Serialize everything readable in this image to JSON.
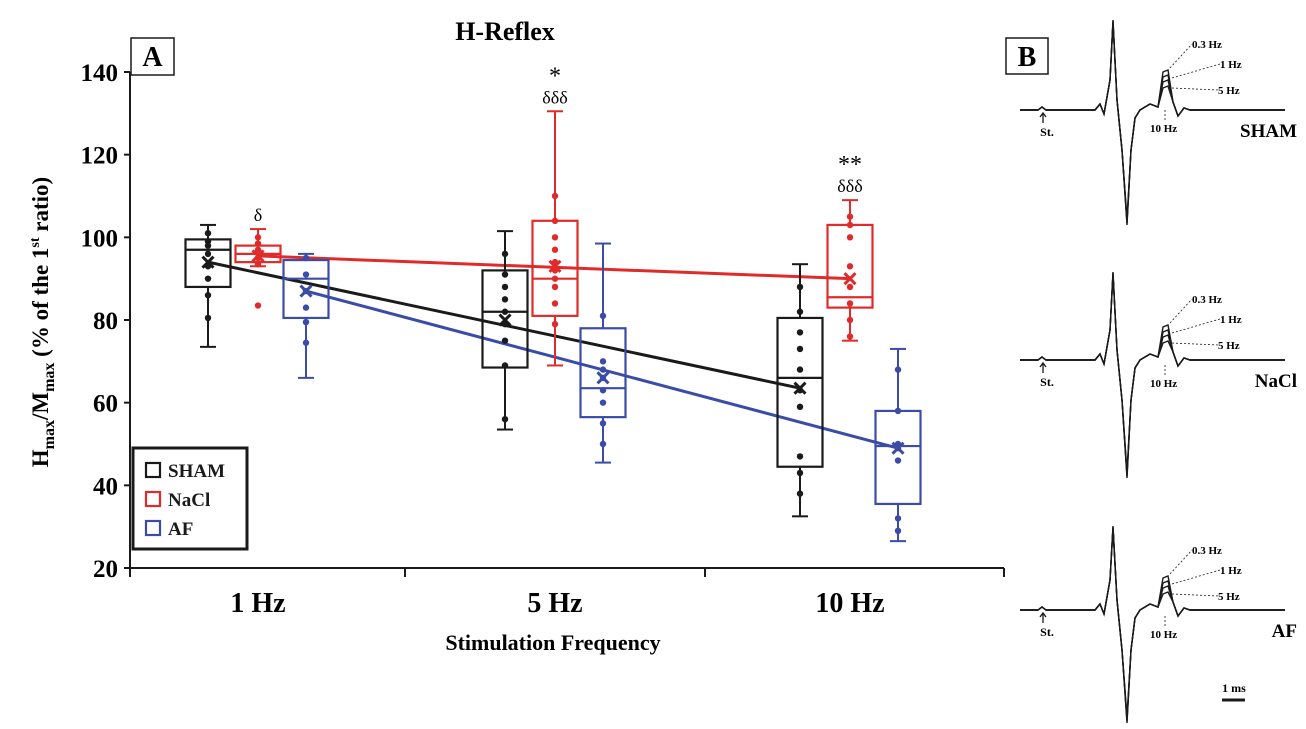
{
  "colors": {
    "sham": "#1a1a1a",
    "nacl": "#e02b2b",
    "af": "#3a4ca8"
  },
  "panel_a": {
    "label": "A",
    "title": "H-Reflex",
    "ylabel_main": "H",
    "ylabel_sub1": "max",
    "ylabel_mid": "/M",
    "ylabel_sub2": "max",
    "ylabel_rest": " (% of the 1",
    "ylabel_sup": "st",
    "ylabel_end": " ratio)",
    "xlabel": "Stimulation Frequency"
  },
  "panel_b": {
    "label": "B",
    "traces": [
      {
        "group": "SHAM",
        "stim": "St.",
        "freqs": [
          "0.3 Hz",
          "1 Hz",
          "5 Hz",
          "10 Hz"
        ]
      },
      {
        "group": "NaCl",
        "stim": "St.",
        "freqs": [
          "0.3 Hz",
          "1 Hz",
          "5 Hz",
          "10 Hz"
        ]
      },
      {
        "group": "AF",
        "stim": "St.",
        "freqs": [
          "0.3 Hz",
          "1 Hz",
          "5 Hz",
          "10 Hz"
        ]
      }
    ],
    "scale_bar": "1 ms"
  },
  "chart_data": {
    "type": "box",
    "title": "H-Reflex",
    "xlabel": "Stimulation Frequency",
    "ylabel": "Hmax/Mmax (% of the 1st ratio)",
    "categories": [
      "1 Hz",
      "5 Hz",
      "10 Hz"
    ],
    "y_ticks": [
      "20",
      "40",
      "60",
      "80",
      "100",
      "120",
      "140"
    ],
    "ylim": [
      20,
      140
    ],
    "legend_position": "bottom-left",
    "series": [
      {
        "name": "SHAM",
        "boxes": [
          {
            "min": 73.5,
            "q1": 88,
            "median": 97,
            "q3": 99.5,
            "max": 103,
            "mean": 94,
            "points": [
              80.5,
              86,
              90,
              93,
              96,
              98,
              99,
              101
            ]
          },
          {
            "min": 53.5,
            "q1": 68.5,
            "median": 82,
            "q3": 92,
            "max": 101.5,
            "mean": 80,
            "points": [
              56,
              69,
              75,
              79,
              82,
              85,
              88,
              91,
              96
            ]
          },
          {
            "min": 32.5,
            "q1": 44.5,
            "median": 66,
            "q3": 80.5,
            "max": 93.5,
            "mean": 63.5,
            "points": [
              38,
              43,
              47,
              59,
              63,
              68,
              73,
              77,
              82,
              88
            ]
          }
        ],
        "annotations": [
          "",
          "",
          ""
        ]
      },
      {
        "name": "NaCl",
        "boxes": [
          {
            "min": 93,
            "q1": 94,
            "median": 96,
            "q3": 98,
            "max": 102,
            "mean": 95.5,
            "points": [
              83.5,
              93.5,
              95,
              97,
              98.5,
              100
            ]
          },
          {
            "min": 69,
            "q1": 81,
            "median": 90,
            "q3": 104,
            "max": 130.5,
            "mean": 93,
            "points": [
              79,
              84,
              88,
              90,
              92,
              94,
              97,
              100,
              104,
              110
            ]
          },
          {
            "min": 75,
            "q1": 83,
            "median": 85.5,
            "q3": 103,
            "max": 109,
            "mean": 90,
            "points": [
              76,
              80,
              84,
              88,
              93,
              100,
              103,
              105
            ]
          }
        ],
        "annotations": [
          "δ",
          "*\nδδδ",
          "**\nδδδ"
        ]
      },
      {
        "name": "AF",
        "boxes": [
          {
            "min": 66,
            "q1": 80.5,
            "median": 90,
            "q3": 94.5,
            "max": 96,
            "mean": 87,
            "points": [
              74.5,
              79.5,
              83,
              87,
              91,
              95
            ]
          },
          {
            "min": 45.5,
            "q1": 56.5,
            "median": 63.5,
            "q3": 78,
            "max": 98.5,
            "mean": 66,
            "points": [
              50,
              55,
              60,
              63,
              66,
              68,
              70,
              81
            ]
          },
          {
            "min": 26.5,
            "q1": 35.5,
            "median": 49.5,
            "q3": 58,
            "max": 73,
            "mean": 49,
            "points": [
              29,
              32,
              46,
              49,
              50,
              58,
              68
            ]
          }
        ],
        "annotations": [
          "",
          "",
          ""
        ]
      }
    ],
    "mean_lines": [
      {
        "name": "SHAM",
        "x": [
          "1 Hz",
          "10 Hz"
        ],
        "y": [
          94,
          63.5
        ]
      },
      {
        "name": "NaCl",
        "x": [
          "1 Hz",
          "10 Hz"
        ],
        "y": [
          95.5,
          90
        ]
      },
      {
        "name": "AF",
        "x": [
          "1 Hz",
          "10 Hz"
        ],
        "y": [
          87,
          49
        ]
      }
    ]
  }
}
